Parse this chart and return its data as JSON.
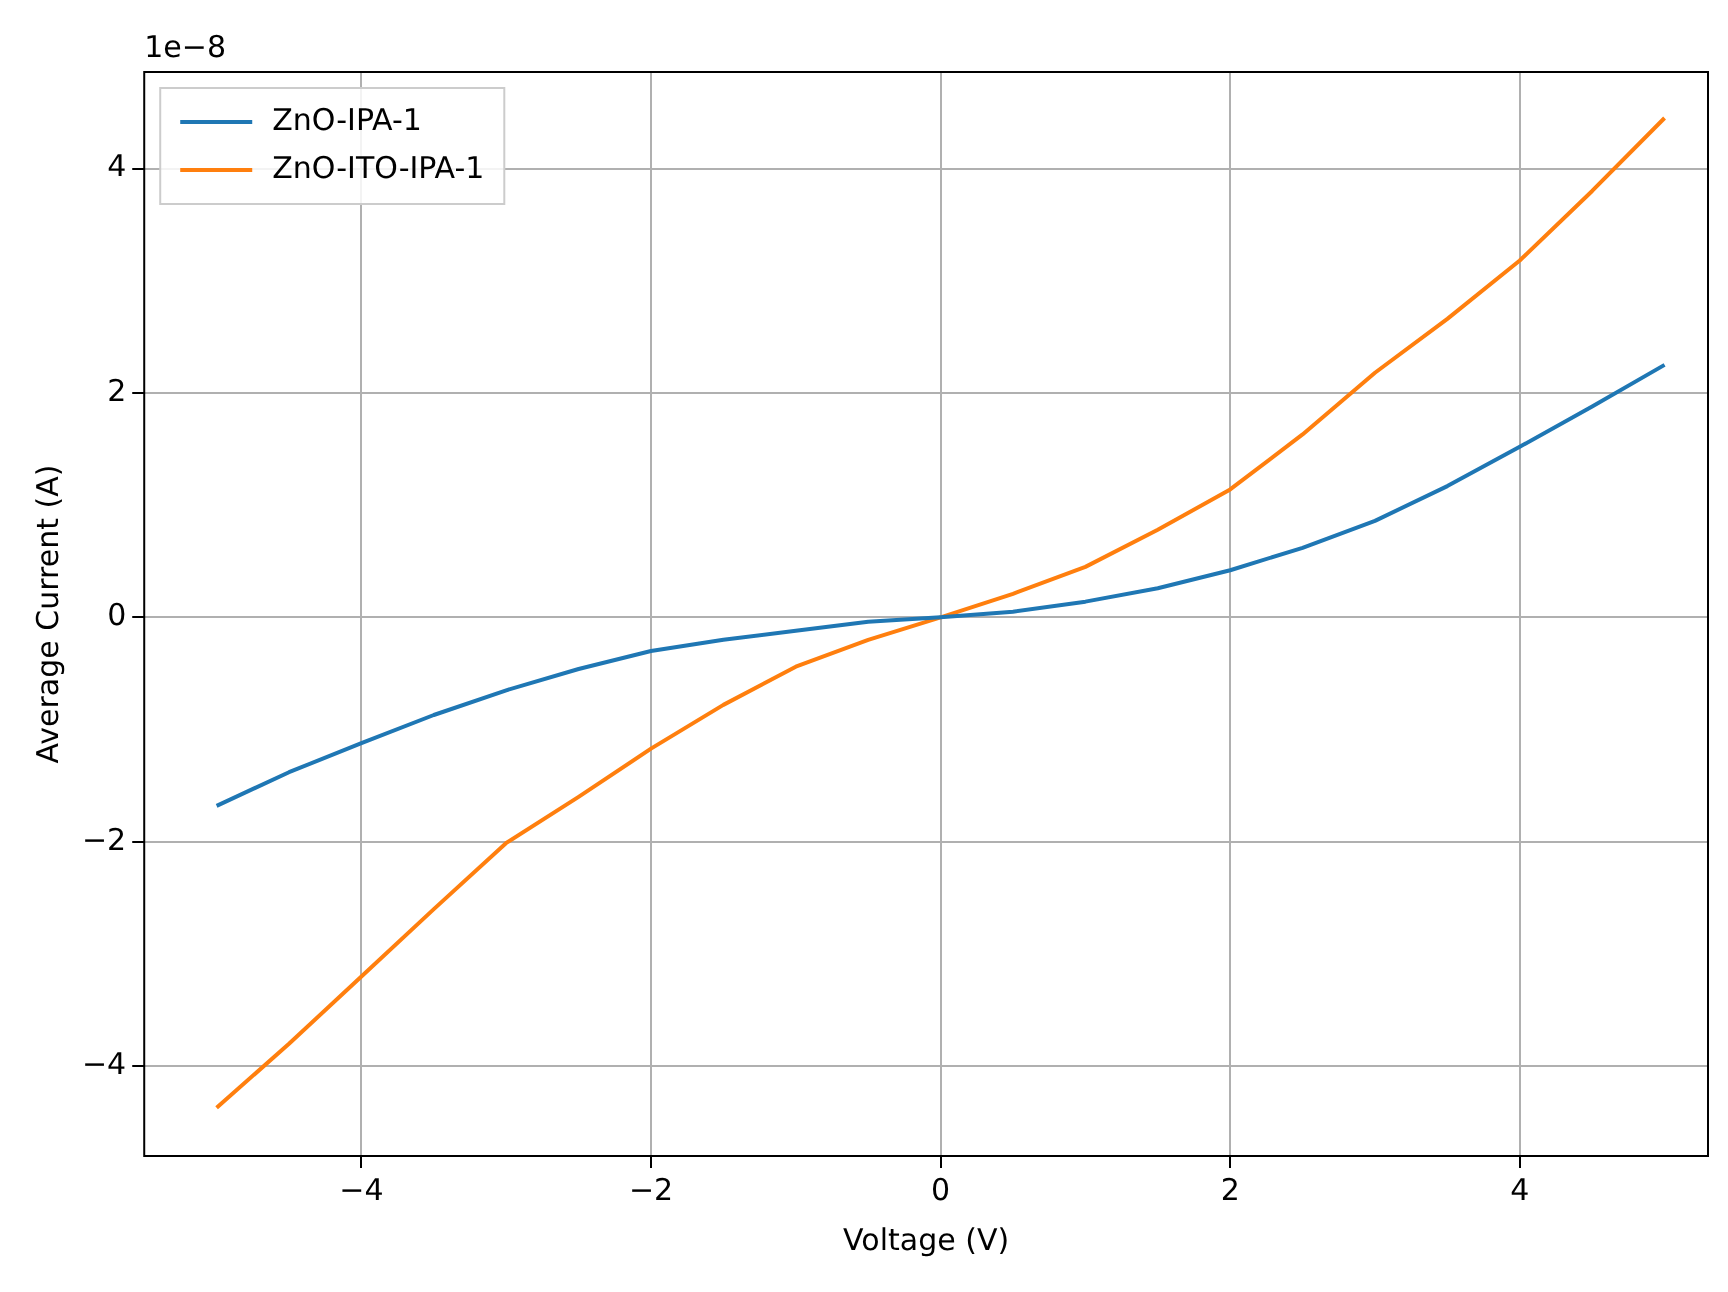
{
  "chart_data": {
    "type": "line",
    "xlabel": "Voltage (V)",
    "ylabel": "Average Current (A)",
    "annotations": [
      "1e−8"
    ],
    "xlim": [
      -5.5,
      5.3
    ],
    "xticks": [
      {
        "value": -4,
        "label": "−4"
      },
      {
        "value": -2,
        "label": "−2"
      },
      0,
      2,
      4
    ],
    "ylim": [
      -4.8,
      4.86
    ],
    "yticks": [
      {
        "value": -4,
        "label": "−4"
      },
      {
        "value": -2,
        "label": "−2"
      },
      0,
      2,
      4
    ],
    "grid": true,
    "legend": "top left",
    "marker": "none",
    "line_style": "solid",
    "series": [
      {
        "name": "ZnO-IPA-1",
        "color": "#1f77b4",
        "x": [
          -5,
          -4.5,
          -4,
          -3.5,
          -3,
          -2.5,
          -2,
          -1.5,
          -1,
          -0.5,
          0,
          0.5,
          1,
          1.5,
          2,
          2.5,
          3,
          3.5,
          4,
          4.5,
          5
        ],
        "values": [
          -1.68,
          -1.38,
          -1.12,
          -0.87,
          -0.65,
          -0.46,
          -0.3,
          -0.2,
          -0.12,
          -0.04,
          0,
          0.05,
          0.14,
          0.26,
          0.42,
          0.62,
          0.86,
          1.17,
          1.52,
          1.88,
          2.25
        ]
      },
      {
        "name": "ZnO-ITO-IPA-1",
        "color": "#ff7f0e",
        "x": [
          -5,
          -4.5,
          -4,
          -3.5,
          -3,
          -2.5,
          -2,
          -1.5,
          -1,
          -0.5,
          0,
          0.5,
          1,
          1.5,
          2,
          2.5,
          3,
          3.5,
          4,
          4.5,
          5
        ],
        "values": [
          -4.37,
          -3.8,
          -3.2,
          -2.6,
          -2.01,
          -1.6,
          -1.17,
          -0.78,
          -0.44,
          -0.2,
          0,
          0.21,
          0.45,
          0.78,
          1.14,
          1.63,
          2.18,
          2.66,
          3.18,
          3.8,
          4.45
        ]
      }
    ]
  }
}
